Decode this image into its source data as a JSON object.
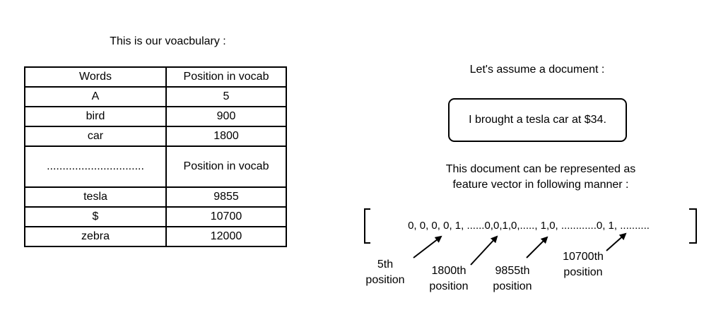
{
  "vocabulary": {
    "title": "This is our voacbulary :",
    "headers": [
      "Words",
      "Position in vocab"
    ],
    "rows": [
      [
        "A",
        "5"
      ],
      [
        "bird",
        "900"
      ],
      [
        "car",
        "1800"
      ],
      [
        "...............................",
        "Position in vocab"
      ],
      [
        "tesla",
        "9855"
      ],
      [
        "$",
        "10700"
      ],
      [
        "zebra",
        "12000"
      ]
    ]
  },
  "document": {
    "title": "Let's assume a document :",
    "text": "I brought a tesla car at $34."
  },
  "representation": {
    "line1": "This document can be represented as",
    "line2": "feature vector in following manner :"
  },
  "vector": {
    "text": "0, 0, 0, 0, 1, ......0,0,1,0,....., 1,0, ............0, 1, .........."
  },
  "positions": [
    {
      "line1": "5th",
      "line2": "position"
    },
    {
      "line1": "1800th",
      "line2": "position"
    },
    {
      "line1": "9855th",
      "line2": "position"
    },
    {
      "line1": "10700th",
      "line2": "position"
    }
  ]
}
